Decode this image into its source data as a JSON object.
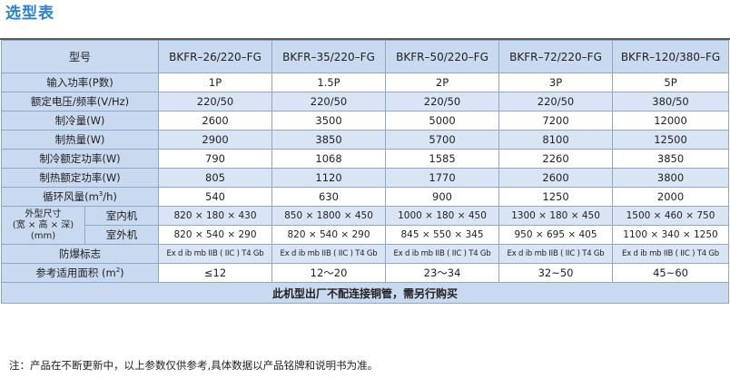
{
  "title": "选型表",
  "header": {
    "model_label": "型号",
    "models": [
      "BKFR–26/220–FG",
      "BKFR–35/220–FG",
      "BKFR–50/220–FG",
      "BKFR–72/220–FG",
      "BKFR–120/380–FG"
    ]
  },
  "rows": [
    {
      "label": "输入功率(P数)",
      "values": [
        "1P",
        "1.5P",
        "2P",
        "3P",
        "5P"
      ]
    },
    {
      "label": "额定电压/频率(V/Hz)",
      "values": [
        "220/50",
        "220/50",
        "220/50",
        "220/50",
        "380/50"
      ]
    },
    {
      "label": "制冷量(W)",
      "values": [
        "2600",
        "3500",
        "5000",
        "7200",
        "12000"
      ]
    },
    {
      "label": "制热量(W)",
      "values": [
        "2900",
        "3850",
        "5700",
        "8100",
        "12500"
      ]
    },
    {
      "label": "制冷额定功率(W)",
      "values": [
        "790",
        "1068",
        "1585",
        "2260",
        "3850"
      ]
    },
    {
      "label": "制热额定功率(W)",
      "values": [
        "805",
        "1120",
        "1770",
        "2600",
        "3800"
      ]
    },
    {
      "label_prefix": "循环风量(m",
      "label_sup": "3",
      "label_suffix": "/h)",
      "values": [
        "540",
        "630",
        "900",
        "1250",
        "2000"
      ]
    }
  ],
  "dimensions": {
    "label_line1": "外型尺寸",
    "label_line2": "(宽 × 高 × 深)",
    "label_line3": "(mm)",
    "indoor_label": "室内机",
    "indoor_values": [
      "820 × 180 × 430",
      "850 × 1800 × 450",
      "1000 × 180 × 450",
      "1300 × 180 × 450",
      "1500 × 460 × 750"
    ],
    "outdoor_label": "室外机",
    "outdoor_values": [
      "820 × 540 × 290",
      "820 × 540 × 290",
      "845 × 550 × 345",
      "950 × 695 × 405",
      "1100 × 340 × 1250"
    ]
  },
  "explosion_mark": {
    "label": "防爆标志",
    "values": [
      "Ex d  ib mb IIB ( IIC ) T4 Gb",
      "Ex d  ib mb IIB ( IIC ) T4 Gb",
      "Ex d  ib mb IIB ( IIC ) T4 Gb",
      "Ex d  ib mb IIB ( IIC ) T4 Gb",
      "Ex d  ib mb IIB ( IIC ) T4 Gb"
    ]
  },
  "area": {
    "label_prefix": "参考适用面积 (m",
    "label_sup": "2",
    "label_suffix": ")",
    "values": [
      "≤12",
      "12～20",
      "23～34",
      "32~50",
      "45~60"
    ]
  },
  "bottom_note": "此机型出厂不配连接铜管，需另行购买",
  "footnote": "注：产品在不断更新中，以上参数仅供参考,具体数据以产品铭牌和说明书为准。"
}
